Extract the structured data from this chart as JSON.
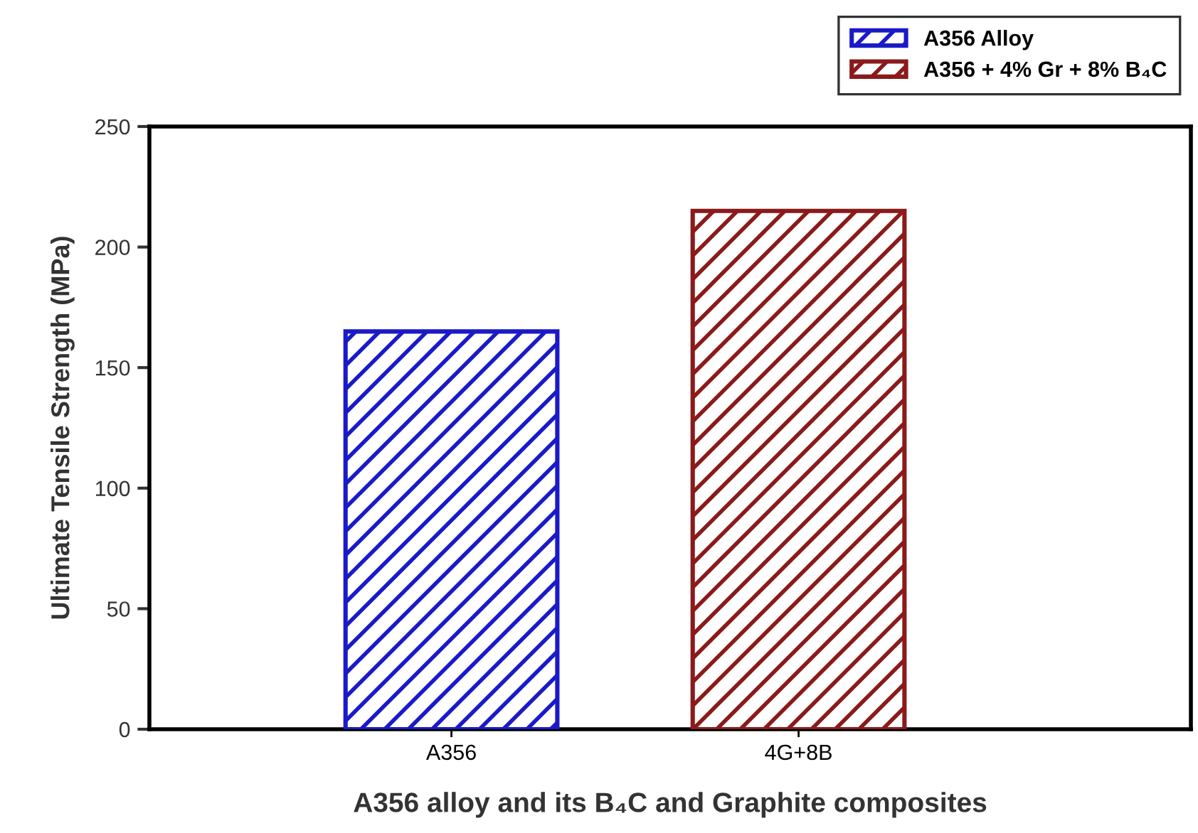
{
  "chart_data": {
    "type": "bar",
    "xlabel": "A356 alloy and its B₄C and Graphite composites",
    "ylabel": "Ultimate Tensile Strength (MPa)",
    "categories": [
      "A356",
      "4G+8B"
    ],
    "series": [
      {
        "name": "A356 Alloy",
        "color": "#1a1ac8",
        "values": [
          165,
          null
        ]
      },
      {
        "name": "A356 + 4% Gr + 8% B₄C",
        "color": "#8b1a1a",
        "values": [
          null,
          215
        ]
      }
    ],
    "ylim": [
      0,
      250
    ],
    "yticks": [
      0,
      50,
      100,
      150,
      200,
      250
    ],
    "grid": false,
    "legend": "top right"
  }
}
